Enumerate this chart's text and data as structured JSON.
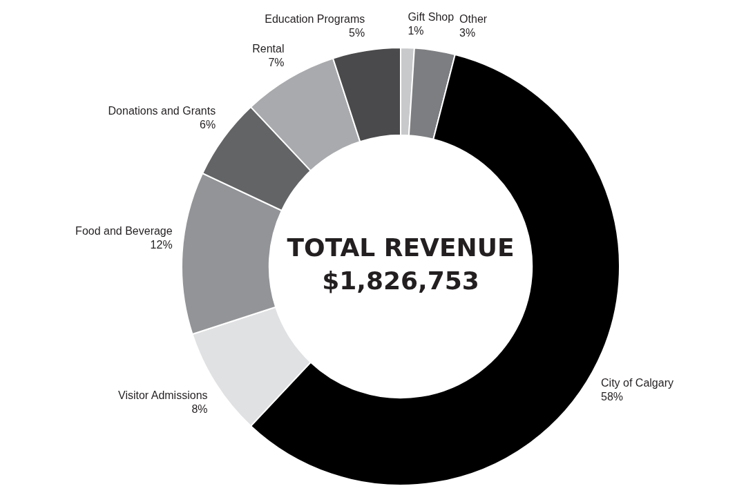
{
  "chart_data": {
    "type": "donut",
    "categories": [
      "Gift Shop",
      "Other",
      "City of Calgary",
      "Visitor Admissions",
      "Food and Beverage",
      "Donations and Grants",
      "Rental",
      "Education Programs"
    ],
    "values": [
      1,
      3,
      58,
      8,
      12,
      6,
      7,
      5
    ],
    "value_labels": [
      "1%",
      "3%",
      "58%",
      "8%",
      "12%",
      "6%",
      "7%",
      "5%"
    ],
    "colors": [
      "#c8c9cb",
      "#7d7e81",
      "#000000",
      "#e0e1e3",
      "#939497",
      "#636466",
      "#a9aaad",
      "#4a4a4c"
    ],
    "annotations": [
      "TOTAL REVENUE",
      "$1,826,753"
    ],
    "legend": false
  }
}
